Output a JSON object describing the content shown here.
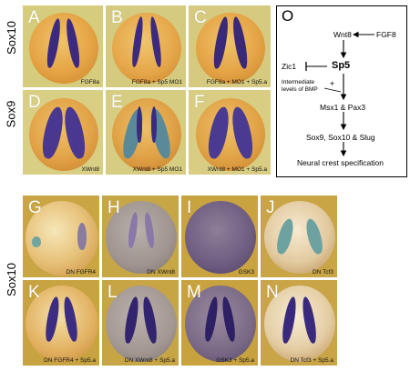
{
  "row_labels": {
    "top_sox10": "Sox10",
    "top_sox9": "Sox9",
    "bottom_sox10": "Sox10"
  },
  "panels": [
    {
      "letter": "A",
      "caption": "FGF8a"
    },
    {
      "letter": "B",
      "caption": "FGF8a + Sp5 MO1"
    },
    {
      "letter": "C",
      "caption": "FGF8a + MO1 + Sp5.a"
    },
    {
      "letter": "D",
      "caption": "XWnt8"
    },
    {
      "letter": "E",
      "caption": "XWnt8 + Sp5 MO1"
    },
    {
      "letter": "F",
      "caption": "XWnt8 + MO1 + Sp5.a"
    },
    {
      "letter": "G",
      "caption": "DN FGFR4"
    },
    {
      "letter": "H",
      "caption": "DN XWnt8"
    },
    {
      "letter": "I",
      "caption": "GSK3"
    },
    {
      "letter": "J",
      "caption": "DN Tcf3"
    },
    {
      "letter": "K",
      "caption": "DN FGFR4 + Sp5.a"
    },
    {
      "letter": "L",
      "caption": "DN XWnt8 + Sp5.a"
    },
    {
      "letter": "M",
      "caption": "GSK3 + Sp5.a"
    },
    {
      "letter": "N",
      "caption": "DN Tcf3 + Sp5.a"
    }
  ],
  "diagram": {
    "letter": "O",
    "wnt8": "Wnt8",
    "fgf8": "FGF8",
    "zic1": "Zic1",
    "sp5": "Sp5",
    "bmp_line1": "Intermediate",
    "bmp_line2": "levels of BMP",
    "plus": "+",
    "msx_pax": "Msx1 & Pax3",
    "sox": "Sox9, Sox10 & Slug",
    "outcome": "Neural crest specification"
  },
  "colors": {
    "bg_top": "#d7cd7a",
    "bg_bottom": "#c4a340",
    "embryo_orange": "#e9a447",
    "embryo_grey": "#a79a93",
    "stain_purple": "#3b2a7a",
    "stain_teal": "#5a9a96"
  }
}
